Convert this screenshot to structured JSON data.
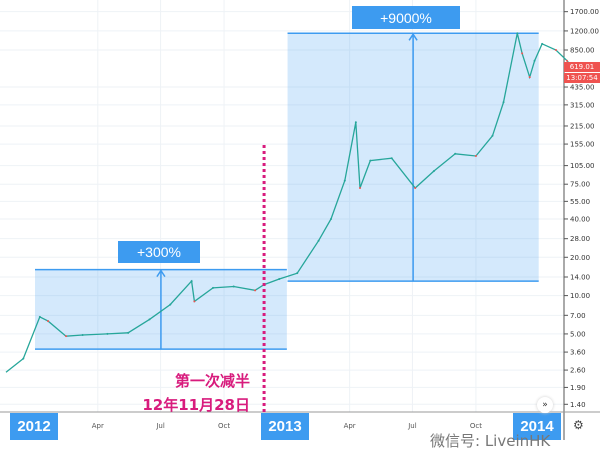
{
  "chart_data": {
    "type": "line",
    "yscale": "log",
    "y_ticks": [
      1700,
      1200,
      850,
      435,
      315,
      215,
      155,
      105,
      75,
      55,
      40,
      28,
      20,
      14,
      10,
      7,
      5,
      3.6,
      2.6,
      1.9,
      1.4
    ],
    "y_tick_labels": [
      "1700.00",
      "1200.00",
      "850.00",
      "435.00",
      "315.00",
      "215.00",
      "155.00",
      "105.00",
      "75.00",
      "55.00",
      "40.00",
      "28.00",
      "20.00",
      "14.00",
      "10.00",
      "7.00",
      "5.00",
      "3.60",
      "2.60",
      "1.90",
      "1.40"
    ],
    "x_years": [
      "2012",
      "2013",
      "2014"
    ],
    "x_months": [
      {
        "label": "Apr",
        "date": "2012-04-01"
      },
      {
        "label": "Jul",
        "date": "2012-07-01"
      },
      {
        "label": "Oct",
        "date": "2012-10-01"
      },
      {
        "label": "Apr",
        "date": "2013-04-01"
      },
      {
        "label": "Jul",
        "date": "2013-07-01"
      },
      {
        "label": "Oct",
        "date": "2013-10-01"
      }
    ],
    "last_price": "619.01",
    "countdown": "13:07:54",
    "colors": {
      "up": "#26a69a",
      "down": "#ef5350",
      "box": "#3d9bf0",
      "halving": "#d81b7d"
    },
    "series": [
      [
        "2011-11-20",
        2.5
      ],
      [
        "2011-12-15",
        3.2
      ],
      [
        "2012-01-08",
        6.8
      ],
      [
        "2012-01-20",
        6.3
      ],
      [
        "2012-02-15",
        4.8
      ],
      [
        "2012-03-10",
        4.9
      ],
      [
        "2012-04-15",
        5
      ],
      [
        "2012-05-15",
        5.1
      ],
      [
        "2012-06-15",
        6.5
      ],
      [
        "2012-07-15",
        8.5
      ],
      [
        "2012-08-15",
        13
      ],
      [
        "2012-08-19",
        9
      ],
      [
        "2012-09-15",
        11.5
      ],
      [
        "2012-10-15",
        11.8
      ],
      [
        "2012-11-15",
        11
      ],
      [
        "2012-11-28",
        12.2
      ],
      [
        "2012-12-20",
        13.5
      ],
      [
        "2013-01-15",
        15
      ],
      [
        "2013-02-15",
        27
      ],
      [
        "2013-03-05",
        40
      ],
      [
        "2013-03-25",
        80
      ],
      [
        "2013-04-10",
        230
      ],
      [
        "2013-04-16",
        70
      ],
      [
        "2013-05-01",
        115
      ],
      [
        "2013-06-01",
        120
      ],
      [
        "2013-07-05",
        70
      ],
      [
        "2013-08-01",
        95
      ],
      [
        "2013-09-01",
        130
      ],
      [
        "2013-10-01",
        125
      ],
      [
        "2013-10-25",
        180
      ],
      [
        "2013-11-10",
        330
      ],
      [
        "2013-11-30",
        1150
      ],
      [
        "2013-12-07",
        800
      ],
      [
        "2013-12-18",
        520
      ],
      [
        "2013-12-25",
        700
      ],
      [
        "2014-01-05",
        950
      ],
      [
        "2014-01-25",
        850
      ],
      [
        "2014-02-10",
        700
      ],
      [
        "2014-02-20",
        600
      ],
      [
        "2014-03-01",
        619
      ]
    ],
    "annotations": [
      {
        "label": "+300%",
        "from_date": "2012-01-01",
        "to_date": "2012-12-31",
        "low": 3.8,
        "high": 16
      },
      {
        "label": "+9000%",
        "from_date": "2013-01-01",
        "to_date": "2013-12-31",
        "low": 13,
        "high": 1150
      }
    ],
    "halving": {
      "date": "2012-11-28",
      "line1": "第一次减半",
      "line2": "12年11月28日"
    }
  },
  "watermark": "微信号: LiveinHK"
}
